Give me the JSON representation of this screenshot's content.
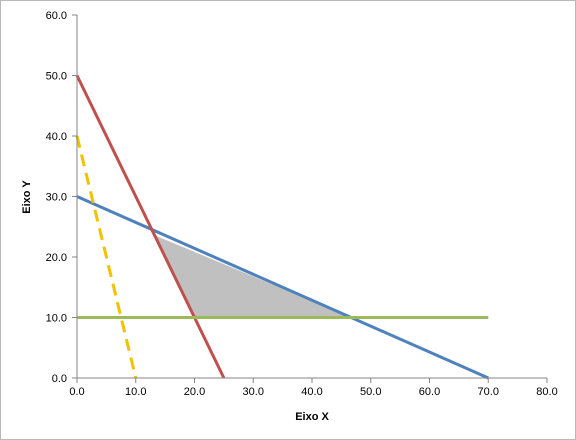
{
  "chart_data": {
    "type": "line",
    "title": "",
    "xlabel": "Eixo X",
    "ylabel": "Eixo Y",
    "xlim": [
      0,
      80
    ],
    "ylim": [
      0,
      60
    ],
    "x_ticks": [
      "0.0",
      "10.0",
      "20.0",
      "30.0",
      "40.0",
      "50.0",
      "60.0",
      "70.0",
      "80.0"
    ],
    "y_ticks": [
      "0.0",
      "10.0",
      "20.0",
      "30.0",
      "40.0",
      "50.0",
      "60.0"
    ],
    "grid": false,
    "legend": "none",
    "series": [
      {
        "color": "#4f81bd",
        "dashed": false,
        "x": [
          0,
          70
        ],
        "y": [
          30,
          0
        ]
      },
      {
        "color": "#c0504d",
        "dashed": false,
        "x": [
          0,
          25
        ],
        "y": [
          50,
          0
        ]
      },
      {
        "color": "#f2c200",
        "dashed": true,
        "x": [
          0,
          10
        ],
        "y": [
          40,
          0
        ]
      },
      {
        "color": "#9bbb59",
        "dashed": false,
        "x": [
          0,
          70
        ],
        "y": [
          10,
          10
        ]
      }
    ],
    "shaded_region": {
      "color": "#c0c0c0",
      "x": [
        13.2,
        20.0,
        46.7
      ],
      "y": [
        23.6,
        10.0,
        10.0
      ]
    }
  }
}
